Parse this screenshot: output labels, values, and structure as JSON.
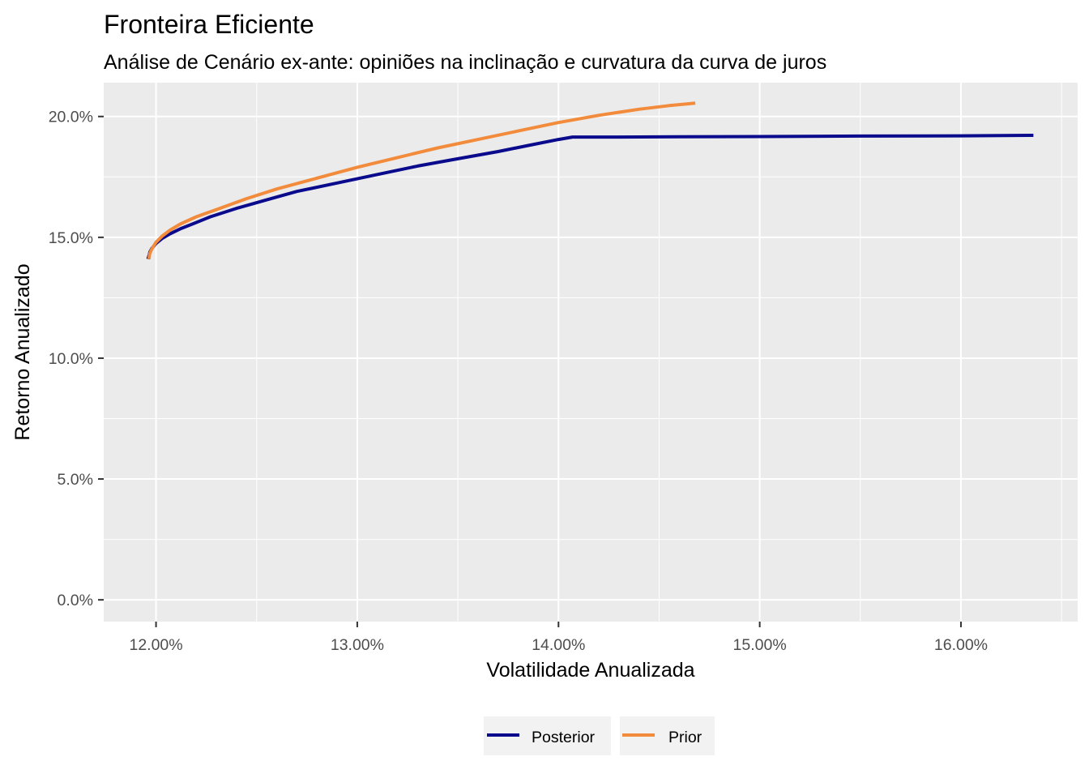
{
  "chart_data": {
    "type": "line",
    "title": "Fronteira Eficiente",
    "subtitle": "Análise de Cenário ex-ante: opiniões na inclinação e curvatura da curva de juros",
    "xlabel": "Volatilidade Anualizada",
    "ylabel": "Retorno Anualizado",
    "xlim": [
      11.74,
      16.58
    ],
    "ylim": [
      -0.9,
      21.4
    ],
    "x_ticks": [
      12.0,
      13.0,
      14.0,
      15.0,
      16.0
    ],
    "x_tick_labels": [
      "12.00%",
      "13.00%",
      "14.00%",
      "15.00%",
      "16.00%"
    ],
    "y_ticks": [
      0,
      5,
      10,
      15,
      20
    ],
    "y_tick_labels": [
      "0.0%",
      "5.0%",
      "10.0%",
      "15.0%",
      "20.0%"
    ],
    "grid": true,
    "legend_position": "bottom",
    "series": [
      {
        "name": "Posterior",
        "color": "#0A0A8C",
        "x": [
          11.96,
          11.965,
          11.97,
          11.98,
          12.0,
          12.03,
          12.07,
          12.12,
          12.18,
          12.27,
          12.4,
          12.55,
          12.7,
          12.9,
          13.1,
          13.3,
          13.5,
          13.7,
          13.85,
          14.0,
          14.07,
          14.3,
          14.6,
          15.0,
          15.5,
          16.0,
          16.36
        ],
        "values": [
          14.1,
          14.25,
          14.4,
          14.55,
          14.75,
          14.95,
          15.15,
          15.35,
          15.55,
          15.85,
          16.2,
          16.55,
          16.9,
          17.25,
          17.6,
          17.95,
          18.25,
          18.55,
          18.8,
          19.05,
          19.15,
          19.15,
          19.16,
          19.17,
          19.19,
          19.2,
          19.22
        ]
      },
      {
        "name": "Prior",
        "color": "#F28C3C",
        "x": [
          11.965,
          11.968,
          11.975,
          11.985,
          12.0,
          12.03,
          12.07,
          12.12,
          12.2,
          12.3,
          12.45,
          12.6,
          12.8,
          13.0,
          13.2,
          13.4,
          13.6,
          13.8,
          14.0,
          14.2,
          14.4,
          14.55,
          14.68
        ],
        "values": [
          14.1,
          14.3,
          14.45,
          14.6,
          14.8,
          15.05,
          15.3,
          15.55,
          15.85,
          16.15,
          16.6,
          17.0,
          17.45,
          17.9,
          18.3,
          18.7,
          19.05,
          19.4,
          19.75,
          20.05,
          20.3,
          20.45,
          20.55
        ]
      }
    ]
  }
}
